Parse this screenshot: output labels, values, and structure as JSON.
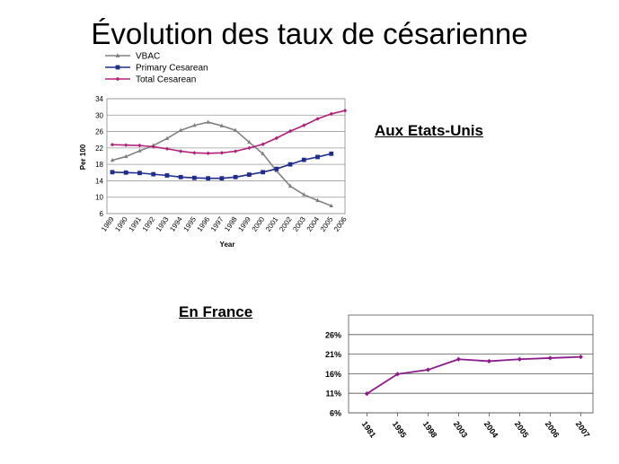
{
  "slide": {
    "title": "Évolution des taux de césarienne",
    "us_label": "Aux Etats-Unis",
    "fr_label": "En France"
  },
  "chart_data": [
    {
      "type": "line",
      "title": "",
      "xlabel": "Year",
      "ylabel": "Per 100",
      "x": [
        "1989",
        "1990",
        "1991",
        "1992",
        "1993",
        "1994",
        "1995",
        "1996",
        "1997",
        "1998",
        "1999",
        "2000",
        "2001",
        "2002",
        "2003",
        "2004",
        "2005",
        "2006"
      ],
      "ylim": [
        6,
        34
      ],
      "yticks": [
        6,
        10,
        14,
        18,
        22,
        26,
        30,
        34
      ],
      "grid": true,
      "legend": "top-left",
      "series": [
        {
          "name": "VBAC",
          "color": "#808080",
          "marker": "triangle",
          "values": [
            19.0,
            19.9,
            21.3,
            22.6,
            24.3,
            26.3,
            27.5,
            28.3,
            27.4,
            26.3,
            23.4,
            20.6,
            16.4,
            12.7,
            10.6,
            9.2,
            7.9,
            null
          ]
        },
        {
          "name": "Primary Cesarean",
          "color": "#1f2d8c",
          "marker": "square",
          "values": [
            16.1,
            16.0,
            15.9,
            15.6,
            15.3,
            14.9,
            14.7,
            14.6,
            14.6,
            14.9,
            15.5,
            16.1,
            16.9,
            18.0,
            19.1,
            19.8,
            20.6,
            null
          ]
        },
        {
          "name": "Total Cesarean",
          "color": "#b0207a",
          "marker": "diamond",
          "values": [
            22.8,
            22.7,
            22.6,
            22.3,
            21.8,
            21.2,
            20.8,
            20.7,
            20.8,
            21.2,
            22.0,
            22.9,
            24.4,
            26.1,
            27.5,
            29.1,
            30.3,
            31.1
          ]
        }
      ]
    },
    {
      "type": "line",
      "title": "",
      "xlabel": "",
      "ylabel": "",
      "x": [
        "1981",
        "1995",
        "1998",
        "2003",
        "2004",
        "2005",
        "2006",
        "2007"
      ],
      "ylim": [
        6,
        31
      ],
      "yticks": [
        "6%",
        "11%",
        "16%",
        "21%",
        "26%"
      ],
      "ytick_values": [
        6,
        11,
        16,
        21,
        26
      ],
      "grid": true,
      "series": [
        {
          "name": "",
          "color": "#8b1a8b",
          "marker": "diamond",
          "values": [
            10.9,
            15.9,
            17.0,
            19.7,
            19.2,
            19.7,
            20.0,
            20.3
          ]
        }
      ]
    }
  ]
}
